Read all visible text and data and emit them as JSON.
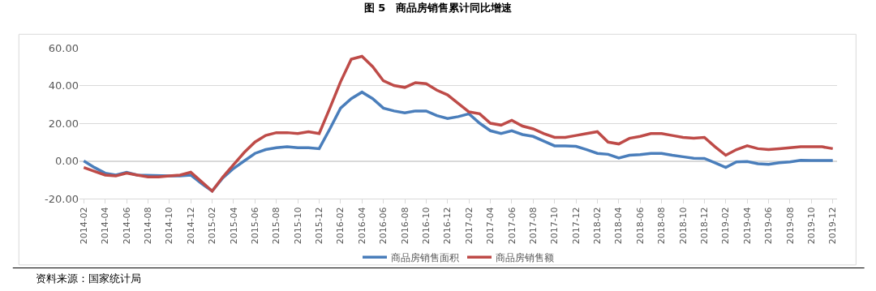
{
  "chart_data": {
    "type": "line",
    "title": "图 5　商品房销售累计同比增速",
    "categories": [
      "2014-02",
      null,
      "2014-04",
      null,
      "2014-06",
      null,
      "2014-08",
      null,
      "2014-10",
      null,
      "2014-12",
      null,
      "2015-02",
      null,
      "2015-04",
      null,
      "2015-06",
      null,
      "2015-08",
      null,
      "2015-10",
      null,
      "2015-12",
      null,
      "2016-02",
      null,
      "2016-04",
      null,
      "2016-06",
      null,
      "2016-08",
      null,
      "2016-10",
      null,
      "2016-12",
      null,
      "2017-02",
      null,
      "2017-04",
      null,
      "2017-06",
      null,
      "2017-08",
      null,
      "2017-10",
      null,
      "2017-12",
      null,
      "2018-02",
      null,
      "2018-04",
      null,
      "2018-06",
      null,
      "2018-08",
      null,
      "2018-10",
      null,
      "2018-12",
      null,
      "2019-02",
      null,
      "2019-04",
      null,
      "2019-06",
      null,
      "2019-08",
      null,
      "2019-10",
      null,
      "2019-12"
    ],
    "series": [
      {
        "name": "商品房销售面积",
        "color": "#4a7ebb",
        "values": [
          0,
          -3.5,
          -6.5,
          -7.5,
          -6,
          -7.5,
          null,
          null,
          -8,
          -8,
          -7.5,
          -12,
          -16,
          -9,
          -4,
          0,
          4,
          6,
          7,
          7.5,
          7,
          7,
          6.5,
          17,
          28,
          33,
          36.5,
          33,
          28,
          26.5,
          25.5,
          26.5,
          26.5,
          24,
          22.5,
          23.5,
          25,
          20,
          16,
          14.5,
          16,
          14,
          13,
          10.5,
          8,
          8,
          7.7,
          6,
          4,
          3.5,
          1.5,
          3,
          3.3,
          4,
          4,
          3,
          2.2,
          1.4,
          1.3,
          -1,
          -3.5,
          -0.5,
          -0.3,
          -1.5,
          -1.8,
          -1,
          -0.5,
          0.3,
          0.2,
          0.2,
          0.2
        ]
      },
      {
        "name": "商品房销售额",
        "color": "#be4b48",
        "values": [
          -3.5,
          -5.5,
          -7.5,
          -8,
          -6.5,
          -7.5,
          -8.5,
          -8.5,
          -8,
          -7.5,
          -6,
          -11,
          -16,
          -8.5,
          -2,
          4.5,
          10,
          13.5,
          15,
          15,
          14.5,
          15.5,
          14.5,
          28,
          42,
          54,
          55.5,
          50,
          42.5,
          40,
          39,
          41.5,
          41,
          37.5,
          35,
          30.5,
          26,
          25,
          20,
          19,
          21.5,
          18.5,
          17,
          14.5,
          12.5,
          12.5,
          13.5,
          14.5,
          15.5,
          10,
          9,
          12,
          13,
          14.5,
          14.5,
          13.5,
          12.5,
          12,
          12.5,
          7.5,
          3,
          6,
          8,
          6.5,
          6,
          6.5,
          7,
          7.5,
          7.5,
          7.5,
          6.5
        ]
      }
    ],
    "ylim": [
      -20,
      60
    ],
    "yticks": [
      {
        "value": -20,
        "label": "-20.00"
      },
      {
        "value": 0,
        "label": "0.00"
      },
      {
        "value": 20,
        "label": "20.00"
      },
      {
        "value": 40,
        "label": "40.00"
      },
      {
        "value": 60,
        "label": "60.00"
      }
    ],
    "grid": "y",
    "legend": "bottom",
    "marker": "none",
    "line_style": "solid",
    "annotations": [
      "资料来源：国家统计局"
    ]
  }
}
